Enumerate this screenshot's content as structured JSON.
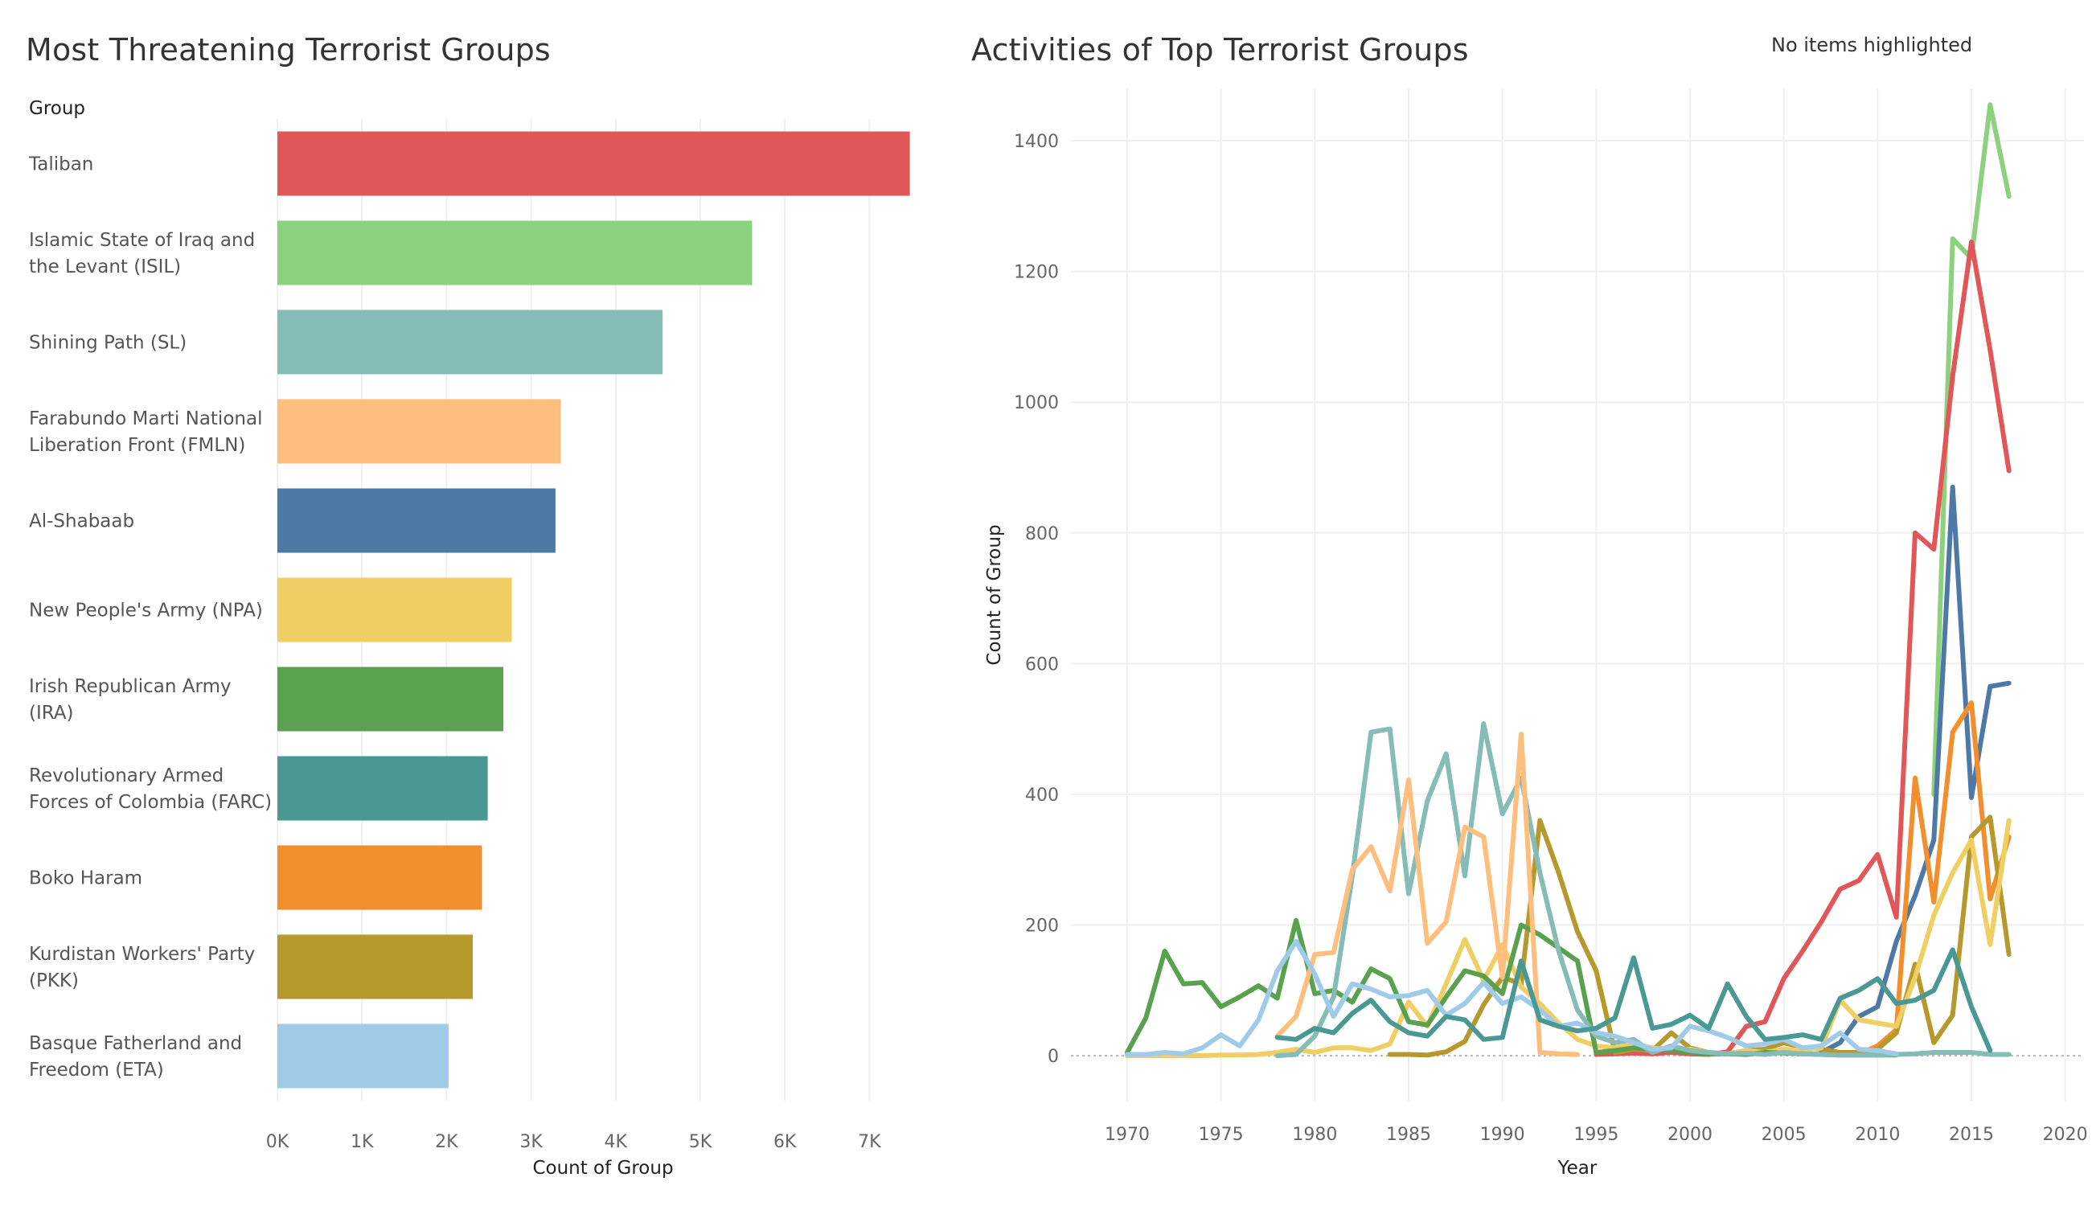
{
  "status_text": "No items highlighted",
  "chart_data": [
    {
      "type": "bar",
      "orientation": "horizontal",
      "title": "Most Threatening Terrorist Groups",
      "row_header": "Group",
      "xlabel": "Count of Group",
      "xlim": [
        0,
        7700
      ],
      "xticks": [
        0,
        1000,
        2000,
        3000,
        4000,
        5000,
        6000,
        7000
      ],
      "xtick_labels": [
        "0K",
        "1K",
        "2K",
        "3K",
        "4K",
        "5K",
        "6K",
        "7K"
      ],
      "grid": true,
      "categories": [
        {
          "label": [
            "Taliban"
          ],
          "value": 7478,
          "color": "#e15759"
        },
        {
          "label": [
            "Islamic State of Iraq and",
            "the Levant (ISIL)"
          ],
          "value": 5613,
          "color": "#8cd17d"
        },
        {
          "label": [
            "Shining Path (SL)"
          ],
          "value": 4555,
          "color": "#86bcb6"
        },
        {
          "label": [
            "Farabundo Marti National",
            "Liberation Front (FMLN)"
          ],
          "value": 3351,
          "color": "#ffbe7d"
        },
        {
          "label": [
            "Al-Shabaab"
          ],
          "value": 3288,
          "color": "#4e79a7"
        },
        {
          "label": [
            "New People's Army (NPA)"
          ],
          "value": 2772,
          "color": "#f1ce63"
        },
        {
          "label": [
            "Irish Republican Army",
            "(IRA)"
          ],
          "value": 2671,
          "color": "#59a14f"
        },
        {
          "label": [
            "Revolutionary Armed",
            "Forces of Colombia (FARC)"
          ],
          "value": 2487,
          "color": "#499894"
        },
        {
          "label": [
            "Boko Haram"
          ],
          "value": 2418,
          "color": "#f28e2b"
        },
        {
          "label": [
            "Kurdistan Workers' Party",
            "(PKK)"
          ],
          "value": 2310,
          "color": "#b6992d"
        },
        {
          "label": [
            "Basque Fatherland and",
            "Freedom (ETA)"
          ],
          "value": 2024,
          "color": "#a0cbe8"
        }
      ]
    },
    {
      "type": "line",
      "title": "Activities of Top Terrorist Groups",
      "xlabel": "Year",
      "ylabel": "Count of Group",
      "xlim": [
        1967,
        2021
      ],
      "ylim": [
        -70,
        1480
      ],
      "xticks": [
        1970,
        1975,
        1980,
        1985,
        1990,
        1995,
        2000,
        2005,
        2010,
        2015,
        2020
      ],
      "yticks": [
        0,
        200,
        400,
        600,
        800,
        1000,
        1200,
        1400
      ],
      "grid": true,
      "series": [
        {
          "color": "#8cd17d",
          "x": [
            2013,
            2014,
            2015,
            2016,
            2017
          ],
          "y": [
            400,
            1250,
            1220,
            1455,
            1315
          ]
        },
        {
          "color": "#e15759",
          "x": [
            1995,
            1996,
            1997,
            1998,
            1999,
            2000,
            2001,
            2002,
            2003,
            2004,
            2005,
            2006,
            2007,
            2008,
            2009,
            2010,
            2011,
            2012,
            2013,
            2014,
            2015,
            2016,
            2017
          ],
          "y": [
            2,
            3,
            4,
            3,
            5,
            3,
            2,
            6,
            45,
            52,
            118,
            160,
            205,
            255,
            268,
            308,
            212,
            800,
            775,
            1040,
            1245,
            1080,
            895
          ]
        },
        {
          "color": "#4e79a7",
          "x": [
            2007,
            2008,
            2009,
            2010,
            2011,
            2012,
            2013,
            2014,
            2015,
            2016,
            2017
          ],
          "y": [
            5,
            20,
            60,
            75,
            175,
            245,
            330,
            870,
            395,
            565,
            570
          ]
        },
        {
          "color": "#f28e2b",
          "x": [
            2009,
            2010,
            2011,
            2012,
            2013,
            2014,
            2015,
            2016,
            2017
          ],
          "y": [
            3,
            15,
            40,
            425,
            235,
            495,
            540,
            240,
            335
          ]
        },
        {
          "color": "#b6992d",
          "x": [
            1984,
            1985,
            1986,
            1987,
            1988,
            1989,
            1990,
            1991,
            1992,
            1993,
            1994,
            1995,
            1996,
            1997,
            1998,
            1999,
            2000,
            2001,
            2002,
            2003,
            2004,
            2005,
            2006,
            2007,
            2008,
            2009,
            2010,
            2011,
            2012,
            2013,
            2014,
            2015,
            2016,
            2017
          ],
          "y": [
            2,
            2,
            1,
            6,
            22,
            78,
            120,
            110,
            360,
            280,
            190,
            130,
            5,
            10,
            8,
            35,
            12,
            5,
            3,
            8,
            10,
            20,
            12,
            10,
            5,
            5,
            10,
            35,
            140,
            20,
            62,
            335,
            365,
            155
          ]
        },
        {
          "color": "#f1ce63",
          "x": [
            1970,
            1971,
            1972,
            1973,
            1974,
            1975,
            1976,
            1977,
            1978,
            1979,
            1980,
            1981,
            1982,
            1983,
            1984,
            1985,
            1986,
            1987,
            1988,
            1989,
            1990,
            1991,
            1992,
            1993,
            1994,
            1995,
            1996,
            1997,
            1998,
            1999,
            2000,
            2001,
            2002,
            2003,
            2004,
            2005,
            2006,
            2007,
            2008,
            2009,
            2010,
            2011,
            2012,
            2013,
            2014,
            2015,
            2016,
            2017
          ],
          "y": [
            0,
            0,
            0,
            0,
            0,
            1,
            1,
            2,
            5,
            10,
            5,
            12,
            12,
            8,
            18,
            82,
            45,
            110,
            178,
            115,
            170,
            105,
            80,
            50,
            25,
            15,
            12,
            18,
            12,
            8,
            10,
            5,
            3,
            8,
            5,
            10,
            8,
            12,
            85,
            55,
            50,
            45,
            120,
            215,
            280,
            330,
            170,
            360
          ]
        },
        {
          "color": "#59a14f",
          "x": [
            1970,
            1971,
            1972,
            1973,
            1974,
            1975,
            1976,
            1977,
            1978,
            1979,
            1980,
            1981,
            1982,
            1983,
            1984,
            1985,
            1986,
            1987,
            1988,
            1989,
            1990,
            1991,
            1992,
            1993,
            1994,
            1995,
            1996,
            1997,
            1998,
            1999,
            2000,
            2001,
            2002,
            2003,
            2004,
            2005,
            2006,
            2007,
            2008,
            2009,
            2010,
            2011
          ],
          "y": [
            5,
            58,
            160,
            110,
            112,
            75,
            90,
            107,
            88,
            207,
            95,
            100,
            82,
            133,
            118,
            52,
            47,
            90,
            130,
            122,
            95,
            200,
            185,
            165,
            145,
            5,
            8,
            12,
            10,
            8,
            5,
            3,
            3,
            2,
            5,
            4,
            3,
            2,
            1,
            1,
            1,
            1
          ]
        },
        {
          "color": "#86bcb6",
          "x": [
            1978,
            1979,
            1980,
            1981,
            1982,
            1983,
            1984,
            1985,
            1986,
            1987,
            1988,
            1989,
            1990,
            1991,
            1992,
            1993,
            1994,
            1995,
            1996,
            1997,
            1998,
            1999,
            2000,
            2001,
            2002,
            2003,
            2004,
            2005,
            2006,
            2007,
            2008,
            2009,
            2010,
            2011,
            2012,
            2013,
            2014,
            2015,
            2016,
            2017
          ],
          "y": [
            0,
            2,
            30,
            90,
            275,
            495,
            500,
            248,
            390,
            462,
            275,
            508,
            370,
            425,
            280,
            160,
            70,
            30,
            20,
            25,
            5,
            15,
            8,
            5,
            3,
            4,
            2,
            5,
            3,
            2,
            1,
            1,
            1,
            2,
            3,
            5,
            5,
            5,
            2,
            2
          ]
        },
        {
          "color": "#ffbe7d",
          "x": [
            1978,
            1979,
            1980,
            1981,
            1982,
            1983,
            1984,
            1985,
            1986,
            1987,
            1988,
            1989,
            1990,
            1991,
            1992,
            1993,
            1994
          ],
          "y": [
            30,
            60,
            155,
            158,
            285,
            320,
            252,
            422,
            172,
            205,
            350,
            335,
            120,
            492,
            5,
            3,
            2
          ]
        },
        {
          "color": "#a0cbe8",
          "x": [
            1970,
            1971,
            1972,
            1973,
            1974,
            1975,
            1976,
            1977,
            1978,
            1979,
            1980,
            1981,
            1982,
            1983,
            1984,
            1985,
            1986,
            1987,
            1988,
            1989,
            1990,
            1991,
            1992,
            1993,
            1994,
            1995,
            1996,
            1997,
            1998,
            1999,
            2000,
            2001,
            2002,
            2003,
            2004,
            2005,
            2006,
            2007,
            2008,
            2009,
            2010,
            2011
          ],
          "y": [
            2,
            2,
            5,
            3,
            12,
            32,
            15,
            55,
            130,
            175,
            125,
            60,
            110,
            102,
            90,
            92,
            100,
            62,
            80,
            112,
            80,
            90,
            70,
            45,
            50,
            35,
            30,
            20,
            10,
            12,
            45,
            38,
            28,
            15,
            18,
            25,
            12,
            15,
            35,
            10,
            8,
            3
          ]
        },
        {
          "color": "#499894",
          "x": [
            1978,
            1979,
            1980,
            1981,
            1982,
            1983,
            1984,
            1985,
            1986,
            1987,
            1988,
            1989,
            1990,
            1991,
            1992,
            1993,
            1994,
            1995,
            1996,
            1997,
            1998,
            1999,
            2000,
            2001,
            2002,
            2003,
            2004,
            2005,
            2006,
            2007,
            2008,
            2009,
            2010,
            2011,
            2012,
            2013,
            2014,
            2015,
            2016
          ],
          "y": [
            28,
            25,
            42,
            35,
            65,
            85,
            52,
            35,
            30,
            60,
            55,
            25,
            28,
            145,
            55,
            45,
            38,
            42,
            58,
            150,
            42,
            48,
            62,
            42,
            110,
            60,
            25,
            28,
            32,
            25,
            88,
            100,
            118,
            80,
            85,
            100,
            162,
            75,
            8
          ]
        }
      ]
    }
  ]
}
